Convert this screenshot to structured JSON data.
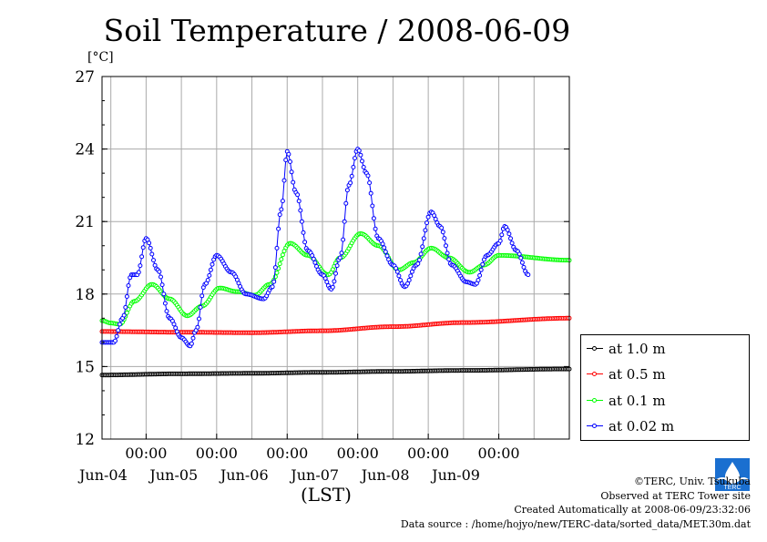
{
  "chart_data": {
    "type": "line",
    "title": "Soil Temperature / 2008-06-09",
    "ylabel": "[°C]",
    "xlabel": "(LST)",
    "ylim": [
      12,
      27
    ],
    "yticks": [
      "12",
      "15",
      "18",
      "21",
      "24",
      "27"
    ],
    "xlim": [
      "2008-06-03T09:00",
      "2008-06-09T24:00"
    ],
    "x_tick_labels": [
      {
        "time": "2008-06-04T00:00",
        "top": "00:00",
        "bottom": "Jun-04"
      },
      {
        "time": "2008-06-05T00:00",
        "top": "00:00",
        "bottom": "Jun-05"
      },
      {
        "time": "2008-06-06T00:00",
        "top": "00:00",
        "bottom": "Jun-06"
      },
      {
        "time": "2008-06-07T00:00",
        "top": "00:00",
        "bottom": "Jun-07"
      },
      {
        "time": "2008-06-08T00:00",
        "top": "00:00",
        "bottom": "Jun-08"
      },
      {
        "time": "2008-06-09T00:00",
        "top": "00:00",
        "bottom": "Jun-09"
      }
    ],
    "grid": true,
    "legend_position": "right",
    "series": [
      {
        "name": "at 1.0 m",
        "color": "#000000",
        "points": [
          [
            "2008-06-03T09:00",
            14.65
          ],
          [
            "2008-06-04T12:00",
            14.7
          ],
          [
            "2008-06-05T12:00",
            14.72
          ],
          [
            "2008-06-06T12:00",
            14.76
          ],
          [
            "2008-06-07T12:00",
            14.8
          ],
          [
            "2008-06-08T12:00",
            14.84
          ],
          [
            "2008-06-09T24:00",
            14.9
          ]
        ]
      },
      {
        "name": "at 0.5 m",
        "color": "#ff0000",
        "points": [
          [
            "2008-06-03T09:00",
            16.45
          ],
          [
            "2008-06-04T12:00",
            16.42
          ],
          [
            "2008-06-05T12:00",
            16.4
          ],
          [
            "2008-06-06T12:00",
            16.48
          ],
          [
            "2008-06-07T12:00",
            16.65
          ],
          [
            "2008-06-08T12:00",
            16.82
          ],
          [
            "2008-06-09T24:00",
            17.0
          ]
        ]
      },
      {
        "name": "at 0.1 m",
        "color": "#00ff00",
        "points": [
          [
            "2008-06-03T09:00",
            16.9
          ],
          [
            "2008-06-03T12:00",
            16.8
          ],
          [
            "2008-06-03T15:00",
            16.75
          ],
          [
            "2008-06-03T20:00",
            17.7
          ],
          [
            "2008-06-04T02:00",
            18.4
          ],
          [
            "2008-06-04T08:00",
            17.8
          ],
          [
            "2008-06-04T14:00",
            17.1
          ],
          [
            "2008-06-04T19:00",
            17.5
          ],
          [
            "2008-06-05T01:00",
            18.25
          ],
          [
            "2008-06-05T07:00",
            18.1
          ],
          [
            "2008-06-05T13:00",
            17.95
          ],
          [
            "2008-06-05T18:00",
            18.4
          ],
          [
            "2008-06-06T01:00",
            20.1
          ],
          [
            "2008-06-06T07:00",
            19.6
          ],
          [
            "2008-06-06T14:00",
            18.8
          ],
          [
            "2008-06-06T18:00",
            19.5
          ],
          [
            "2008-06-07T01:00",
            20.5
          ],
          [
            "2008-06-07T07:00",
            20.0
          ],
          [
            "2008-06-07T14:00",
            19.0
          ],
          [
            "2008-06-07T19:00",
            19.3
          ],
          [
            "2008-06-08T01:00",
            19.9
          ],
          [
            "2008-06-08T07:00",
            19.5
          ],
          [
            "2008-06-08T14:00",
            18.9
          ],
          [
            "2008-06-08T19:00",
            19.2
          ],
          [
            "2008-06-09T00:00",
            19.6
          ],
          [
            "2008-06-09T24:00",
            19.4
          ]
        ]
      },
      {
        "name": "at 0.02 m",
        "color": "#0000ff",
        "points": [
          [
            "2008-06-03T09:00",
            16.0
          ],
          [
            "2008-06-03T13:00",
            16.0
          ],
          [
            "2008-06-03T16:00",
            17.0
          ],
          [
            "2008-06-03T19:00",
            18.8
          ],
          [
            "2008-06-03T21:00",
            18.8
          ],
          [
            "2008-06-04T00:00",
            20.3
          ],
          [
            "2008-06-04T04:00",
            19.0
          ],
          [
            "2008-06-04T08:00",
            17.0
          ],
          [
            "2008-06-04T12:00",
            16.2
          ],
          [
            "2008-06-04T15:00",
            15.85
          ],
          [
            "2008-06-04T17:00",
            16.5
          ],
          [
            "2008-06-04T20:00",
            18.4
          ],
          [
            "2008-06-05T00:00",
            19.6
          ],
          [
            "2008-06-05T05:00",
            18.9
          ],
          [
            "2008-06-05T10:00",
            18.0
          ],
          [
            "2008-06-05T16:00",
            17.8
          ],
          [
            "2008-06-05T19:00",
            18.3
          ],
          [
            "2008-06-05T22:00",
            21.5
          ],
          [
            "2008-06-06T00:00",
            23.9
          ],
          [
            "2008-06-06T03:00",
            22.2
          ],
          [
            "2008-06-06T07:00",
            19.8
          ],
          [
            "2008-06-06T12:00",
            18.8
          ],
          [
            "2008-06-06T15:00",
            18.2
          ],
          [
            "2008-06-06T18:00",
            19.5
          ],
          [
            "2008-06-06T21:00",
            22.5
          ],
          [
            "2008-06-07T00:00",
            24.0
          ],
          [
            "2008-06-07T03:00",
            23.0
          ],
          [
            "2008-06-07T07:00",
            20.3
          ],
          [
            "2008-06-07T12:00",
            19.2
          ],
          [
            "2008-06-07T16:00",
            18.3
          ],
          [
            "2008-06-07T20:00",
            19.2
          ],
          [
            "2008-06-08T01:00",
            21.4
          ],
          [
            "2008-06-08T04:00",
            20.8
          ],
          [
            "2008-06-08T08:00",
            19.2
          ],
          [
            "2008-06-08T13:00",
            18.5
          ],
          [
            "2008-06-08T16:00",
            18.4
          ],
          [
            "2008-06-08T20:00",
            19.6
          ],
          [
            "2008-06-09T00:00",
            20.1
          ],
          [
            "2008-06-09T02:00",
            20.8
          ],
          [
            "2008-06-09T06:00",
            19.8
          ],
          [
            "2008-06-09T10:00",
            18.8
          ]
        ]
      }
    ]
  },
  "legend": {
    "items": [
      "at 1.0 m",
      "at 0.5 m",
      "at 0.1 m",
      "at 0.02 m"
    ],
    "colors": [
      "#000000",
      "#ff0000",
      "#00ff00",
      "#0000ff"
    ]
  },
  "credits": {
    "line1": "©TERC, Univ. Tsukuba",
    "line2": "Observed at TERC Tower site",
    "line3": "Created Automatically at 2008-06-09/23:32:06",
    "line4": "Data source : /home/hojyo/new/TERC-data/sorted_data/MET.30m.dat"
  },
  "logo": {
    "text": "TERC",
    "color": "#1a6fd0"
  }
}
